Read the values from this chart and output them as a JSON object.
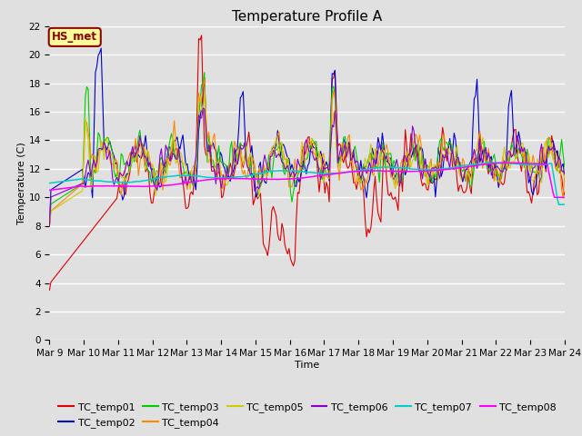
{
  "title": "Temperature Profile A",
  "xlabel": "Time",
  "ylabel": "Temperature (C)",
  "ylim": [
    0,
    22
  ],
  "annotation": "HS_met",
  "series_colors": {
    "TC_temp01": "#dd0000",
    "TC_temp02": "#0000cc",
    "TC_temp03": "#00cc00",
    "TC_temp04": "#ff8800",
    "TC_temp05": "#cccc00",
    "TC_temp06": "#8800cc",
    "TC_temp07": "#00cccc",
    "TC_temp08": "#ff00ff"
  },
  "x_tick_labels": [
    "Mar 9",
    "Mar 10",
    "Mar 11",
    "Mar 12",
    "Mar 13",
    "Mar 14",
    "Mar 15",
    "Mar 16",
    "Mar 17",
    "Mar 18",
    "Mar 19",
    "Mar 20",
    "Mar 21",
    "Mar 22",
    "Mar 23",
    "Mar 24"
  ],
  "y_ticks": [
    0,
    2,
    4,
    6,
    8,
    10,
    12,
    14,
    16,
    18,
    20,
    22
  ],
  "title_fontsize": 11,
  "axis_label_fontsize": 8,
  "tick_fontsize": 7.5,
  "legend_fontsize": 8
}
